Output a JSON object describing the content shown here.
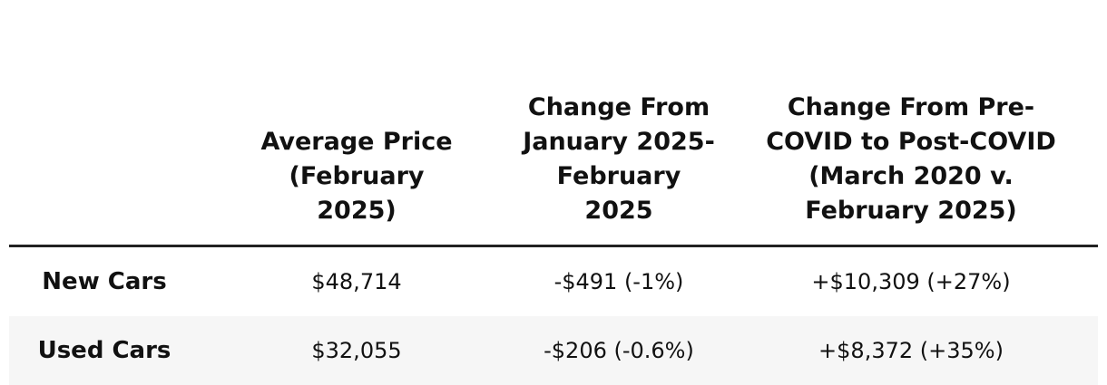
{
  "table": {
    "header": [
      "",
      "Average Price (February 2025)",
      "Change From January 2025-February 2025",
      "Change From Pre-COVID to Post-COVID (March 2020 v. February 2025)"
    ],
    "rows": [
      [
        "New Cars",
        "$48,714",
        "-$491 (-1%)",
        "+$10,309 (+27%)"
      ],
      [
        "Used Cars",
        "$32,055",
        "-$206 (-0.6%)",
        "+$8,372 (+35%)"
      ]
    ]
  }
}
